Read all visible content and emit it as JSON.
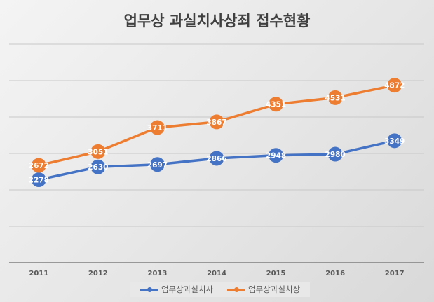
{
  "chart_data": {
    "type": "line",
    "title": "업무상 과실치사상죄 접수현황",
    "categories": [
      "2011",
      "2012",
      "2013",
      "2014",
      "2015",
      "2016",
      "2017"
    ],
    "series": [
      {
        "name": "업무상과실치사",
        "color": "#4472C4",
        "values": [
          2278,
          2630,
          2697,
          2866,
          2948,
          2980,
          3349
        ]
      },
      {
        "name": "업무상과실치상",
        "color": "#ED7D31",
        "values": [
          2672,
          3051,
          3711,
          3867,
          4351,
          4531,
          4872
        ]
      }
    ],
    "ylim": [
      0,
      6000
    ],
    "y_gridlines": [
      1000,
      2000,
      3000,
      4000,
      5000,
      6000
    ],
    "y_tick_labels_shown": false,
    "grid": true,
    "data_labels": true,
    "legend": "bottom"
  }
}
